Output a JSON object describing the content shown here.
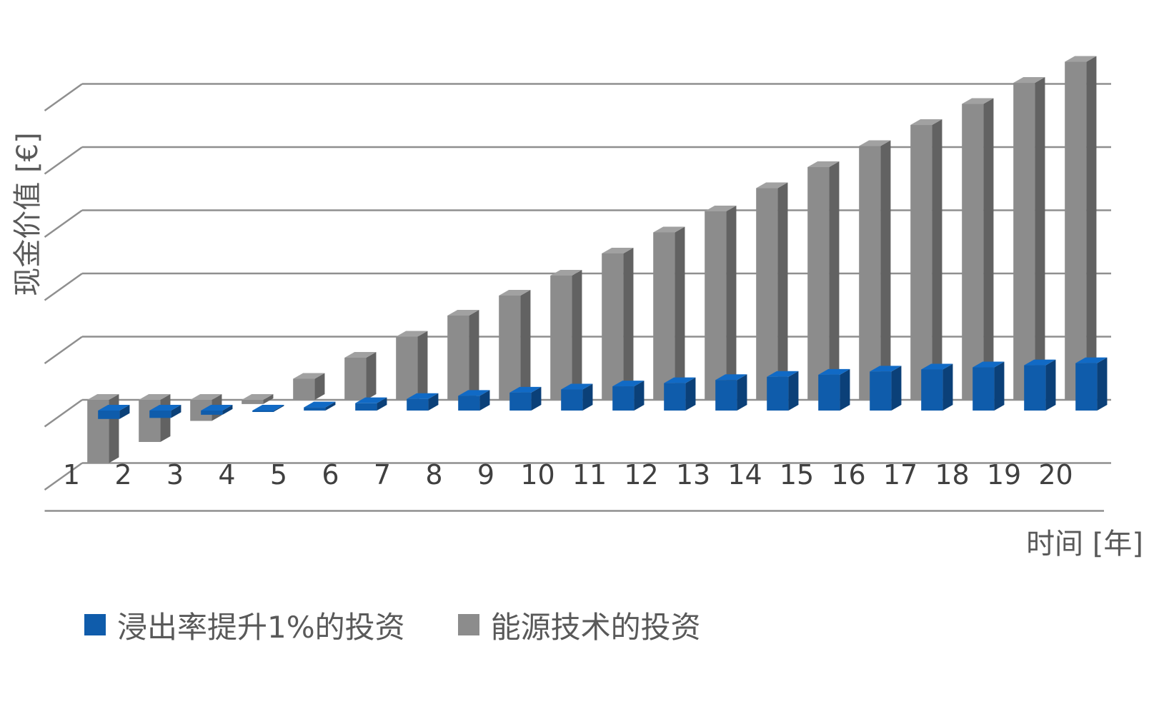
{
  "chart_data": {
    "type": "bar",
    "categories": [
      "1",
      "2",
      "3",
      "4",
      "5",
      "6",
      "7",
      "8",
      "9",
      "10",
      "11",
      "12",
      "13",
      "14",
      "15",
      "16",
      "17",
      "18",
      "19",
      "20"
    ],
    "series": [
      {
        "name": "浸出率提升1%的投资",
        "color": "#0F5CAB",
        "values": [
          -0.4,
          -0.35,
          -0.2,
          -0.05,
          0.15,
          0.35,
          0.55,
          0.7,
          0.85,
          1.0,
          1.15,
          1.3,
          1.45,
          1.6,
          1.7,
          1.85,
          1.95,
          2.05,
          2.15,
          2.25
        ]
      },
      {
        "name": "能源技术的投资",
        "color": "#8C8C8C",
        "values": [
          -3.0,
          -2.0,
          -1.0,
          -0.2,
          1.0,
          2.0,
          3.0,
          4.0,
          4.95,
          5.9,
          6.95,
          7.95,
          8.95,
          10.05,
          11.05,
          12.05,
          13.05,
          14.05,
          15.05,
          16.05
        ]
      }
    ],
    "xlabel": "时间 [年]",
    "ylabel": "现金价值 [€]",
    "ylim": [
      -3,
      17
    ],
    "grid": true,
    "legend": "bottom"
  }
}
